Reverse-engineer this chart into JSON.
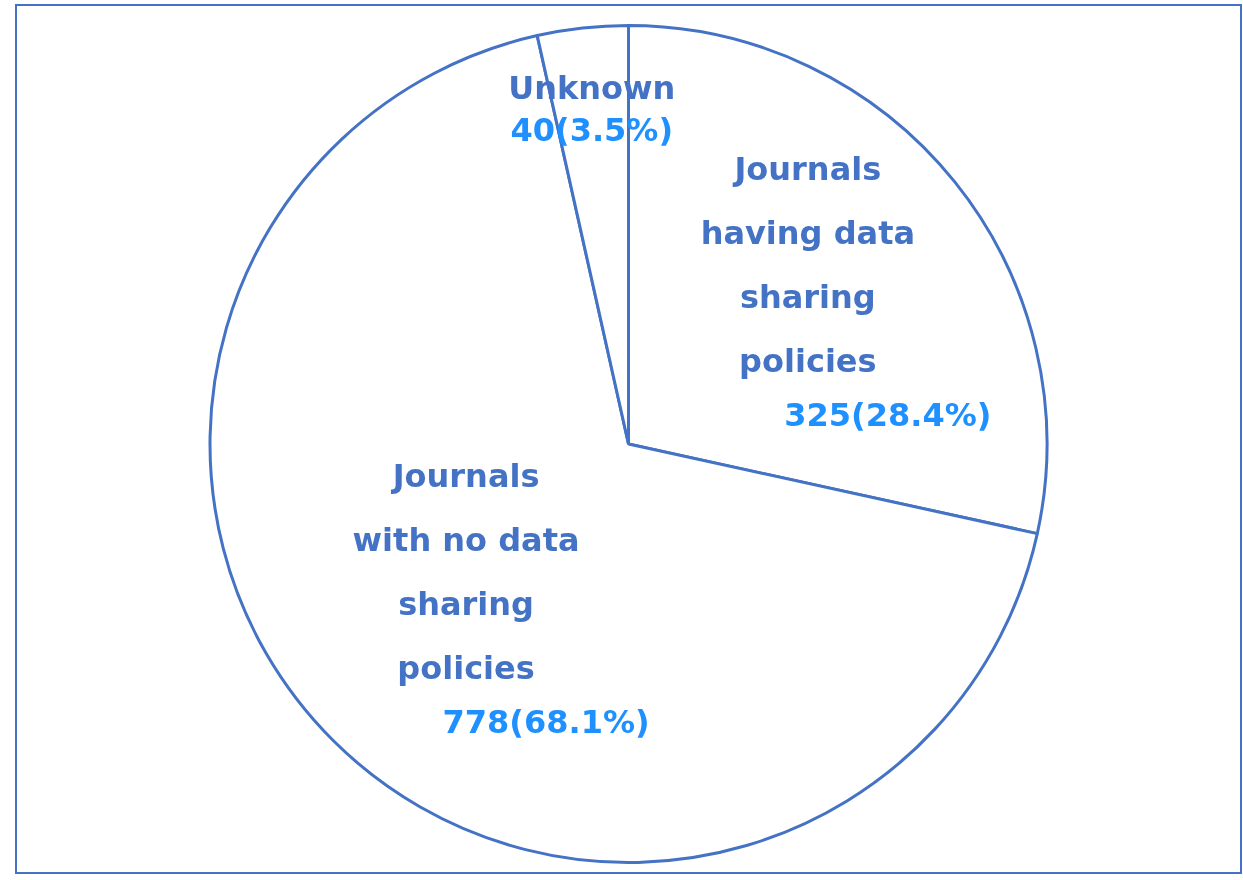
{
  "chart_data": {
    "type": "pie",
    "categories": [
      "Journals having data sharing policies",
      "Journals with no data sharing policies",
      "Unknown"
    ],
    "values": [
      325,
      778,
      40
    ],
    "colors": [
      "#ffffff",
      "#ffffff",
      "#ffffff"
    ],
    "value_labels": [
      "325(28.4%)",
      "778(68.1%)",
      "40(3.5%)"
    ],
    "legend": false
  }
}
